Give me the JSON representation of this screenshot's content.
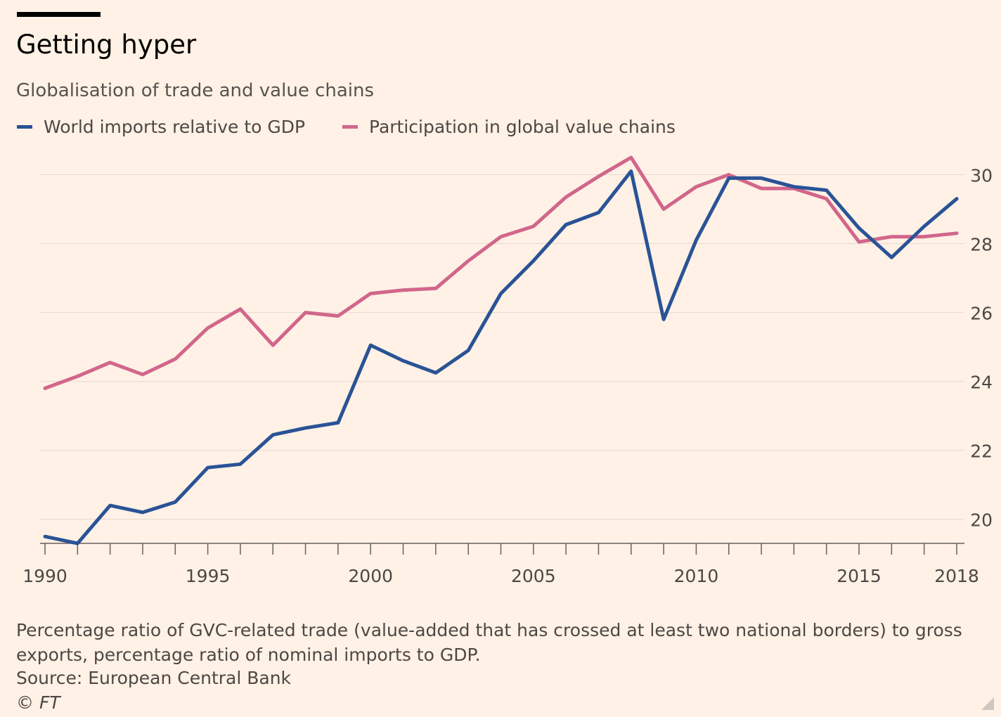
{
  "header": {
    "title": "Getting hyper",
    "subtitle": "Globalisation of trade and value chains"
  },
  "legend": [
    {
      "label": "World imports relative to GDP",
      "color": "#2A5396"
    },
    {
      "label": "Participation in global value chains",
      "color": "#D1668B"
    }
  ],
  "footer": {
    "footnote": "Percentage ratio of GVC-related trade (value-added that has crossed at least two national borders) to gross exports, percentage ratio of nominal imports to GDP.",
    "source": "Source: European Central Bank",
    "copyright": "© FT"
  },
  "chart_data": {
    "type": "line",
    "title": "Getting hyper",
    "subtitle": "Globalisation of trade and value chains",
    "xlabel": "",
    "ylabel": "",
    "x": [
      1990,
      1991,
      1992,
      1993,
      1994,
      1995,
      1996,
      1997,
      1998,
      1999,
      2000,
      2001,
      2002,
      2003,
      2004,
      2005,
      2006,
      2007,
      2008,
      2009,
      2010,
      2011,
      2012,
      2013,
      2014,
      2015,
      2016,
      2017,
      2018
    ],
    "xticks": [
      1990,
      1995,
      2000,
      2005,
      2010,
      2015,
      2018
    ],
    "yticks": [
      20,
      22,
      24,
      26,
      28,
      30
    ],
    "xlim": [
      1990,
      2018
    ],
    "ylim": [
      19.3,
      30.5
    ],
    "y_axis_position": "right",
    "grid": "horizontal",
    "legend_position": "top-left",
    "series": [
      {
        "name": "World imports relative to GDP",
        "color": "#2A5396",
        "values": [
          19.5,
          19.3,
          20.4,
          20.2,
          20.5,
          21.5,
          21.6,
          22.45,
          22.65,
          22.8,
          25.05,
          24.6,
          24.25,
          24.9,
          26.55,
          27.5,
          28.55,
          28.9,
          30.1,
          25.8,
          28.1,
          29.9,
          29.9,
          29.65,
          29.55,
          28.45,
          27.6,
          28.5,
          29.3
        ]
      },
      {
        "name": "Participation in global value chains",
        "color": "#D1668B",
        "values": [
          23.8,
          24.15,
          24.55,
          24.2,
          24.65,
          25.55,
          26.1,
          25.05,
          26.0,
          25.9,
          26.55,
          26.65,
          26.7,
          27.5,
          28.2,
          28.5,
          29.35,
          29.95,
          30.5,
          29.0,
          29.65,
          30.0,
          29.6,
          29.6,
          29.3,
          28.05,
          28.2,
          28.2,
          28.3
        ]
      }
    ]
  }
}
